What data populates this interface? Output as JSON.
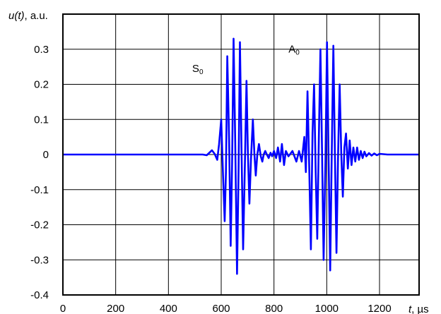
{
  "chart_data": {
    "type": "line",
    "y_label_var": "u(t)",
    "y_label_unit": ", a.u.",
    "x_label_var": "t",
    "x_label_unit": ",  µs",
    "xlim": [
      0,
      1350
    ],
    "ylim": [
      -0.4,
      0.4
    ],
    "grid": true,
    "x_ticks": [
      0,
      200,
      400,
      600,
      800,
      1000,
      1200
    ],
    "x_tick_labels": [
      "0",
      "200",
      "400",
      "600",
      "800",
      "1000",
      "1200"
    ],
    "y_ticks": [
      -0.4,
      -0.3,
      -0.2,
      -0.1,
      0,
      0.1,
      0.2,
      0.3
    ],
    "y_tick_labels": [
      "-0.4",
      "-0.3",
      "-0.2",
      "-0.1",
      "0",
      "0.1",
      "0.2",
      "0.3"
    ],
    "line_color": "#0000ff",
    "annotations": [
      {
        "main": "S",
        "sub": "0",
        "x": 490,
        "y": 0.235
      },
      {
        "main": "A",
        "sub": "0",
        "x": 855,
        "y": 0.29
      }
    ],
    "series": [
      {
        "x": [
          0,
          530,
          545,
          555,
          565,
          575,
          585,
          592,
          600,
          607,
          613,
          618,
          623,
          630,
          636,
          641,
          647,
          653,
          660,
          666,
          671,
          677,
          683,
          690,
          696,
          701,
          707,
          713,
          720,
          726,
          731,
          737,
          743,
          750,
          756,
          761,
          767,
          773,
          780,
          787,
          793,
          800,
          808,
          815,
          823,
          830,
          838,
          845,
          855,
          870,
          885,
          895,
          905,
          915,
          921,
          927,
          934,
          940,
          946,
          952,
          958,
          964,
          970,
          976,
          982,
          988,
          995,
          1001,
          1007,
          1013,
          1019,
          1025,
          1031,
          1037,
          1043,
          1049,
          1055,
          1061,
          1067,
          1073,
          1080,
          1087,
          1094,
          1101,
          1108,
          1115,
          1122,
          1129,
          1136,
          1143,
          1150,
          1160,
          1170,
          1180,
          1190,
          1200,
          1215,
          1230,
          1350
        ],
        "y": [
          0,
          0,
          -0.002,
          0.005,
          0.012,
          0.002,
          -0.015,
          0.03,
          0.1,
          -0.06,
          -0.19,
          -0.05,
          0.28,
          0.04,
          -0.26,
          -0.04,
          0.33,
          0.04,
          -0.34,
          -0.04,
          0.32,
          0.02,
          -0.27,
          -0.02,
          0.21,
          0.01,
          -0.14,
          -0.01,
          0.1,
          0.0,
          -0.06,
          0.0,
          0.03,
          -0.005,
          -0.02,
          0.0,
          0.01,
          0.0,
          -0.01,
          0.005,
          -0.005,
          0.01,
          -0.01,
          0.02,
          -0.02,
          0.03,
          -0.03,
          0.01,
          -0.005,
          0.01,
          -0.02,
          0.01,
          -0.02,
          0.05,
          -0.05,
          0.18,
          -0.05,
          -0.27,
          0.06,
          0.2,
          -0.05,
          -0.24,
          0.04,
          0.3,
          0.02,
          -0.3,
          -0.02,
          0.32,
          0.0,
          -0.33,
          0.0,
          0.31,
          0.0,
          -0.28,
          0.0,
          0.2,
          0.0,
          -0.12,
          0.02,
          0.06,
          -0.04,
          0.04,
          -0.03,
          0.02,
          -0.02,
          0.02,
          -0.015,
          0.01,
          -0.01,
          0.008,
          -0.005,
          0.004,
          -0.003,
          0.003,
          -0.002,
          0.002,
          0.001,
          0,
          0
        ]
      }
    ]
  }
}
